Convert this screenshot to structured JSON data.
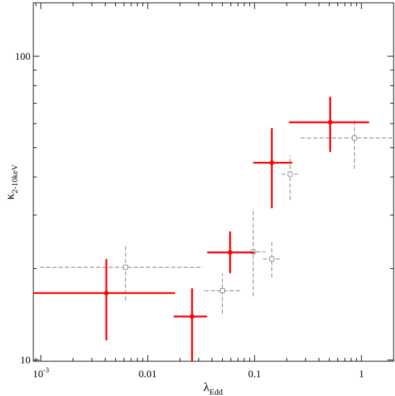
{
  "chart_data": {
    "type": "scatter",
    "title": "",
    "xlabel": "λ",
    "xlabel_sub": "Edd",
    "ylabel": "κ",
    "ylabel_sub": "2-10keV",
    "xscale": "log",
    "yscale": "log",
    "xlim": [
      0.00085,
      2.0
    ],
    "ylim": [
      9.9,
      150
    ],
    "grid": false,
    "legend": "none",
    "x_ticks": [
      {
        "value": 0.001,
        "base": "10",
        "exp": "-3"
      },
      {
        "value": 0.01,
        "label": "0.01"
      },
      {
        "value": 0.1,
        "label": "0.1"
      },
      {
        "value": 1,
        "label": "1"
      }
    ],
    "y_ticks": [
      {
        "value": 10,
        "label": "10"
      },
      {
        "value": 100,
        "label": "100"
      }
    ],
    "series": [
      {
        "color": "#ff0000",
        "marker": "filled-circle",
        "points": [
          {
            "x": 0.0041,
            "xlo": 0.00086,
            "xhi": 0.018,
            "y": 16.6,
            "ylo": 11.6,
            "yhi": 21.5
          },
          {
            "x": 0.026,
            "xlo": 0.0175,
            "xhi": 0.036,
            "y": 13.9,
            "ylo": 9.9,
            "yhi": 17.2
          },
          {
            "x": 0.059,
            "xlo": 0.036,
            "xhi": 0.1,
            "y": 22.6,
            "ylo": 19.3,
            "yhi": 26.5
          },
          {
            "x": 0.145,
            "xlo": 0.097,
            "xhi": 0.225,
            "y": 44.6,
            "ylo": 31.6,
            "yhi": 58.0
          },
          {
            "x": 0.51,
            "xlo": 0.21,
            "xhi": 1.18,
            "y": 60.6,
            "ylo": 48.4,
            "yhi": 73.5
          }
        ]
      },
      {
        "color": "#8c8c8c",
        "marker": "open-square",
        "line_style": "dashed",
        "points": [
          {
            "x": 0.0062,
            "xlo": 0.00098,
            "xhi": 0.033,
            "y": 20.2,
            "ylo": 15.7,
            "yhi": 23.7
          },
          {
            "x": 0.05,
            "xlo": 0.034,
            "xhi": 0.076,
            "y": 16.9,
            "ylo": 14.2,
            "yhi": 19.3
          },
          {
            "x": 0.097,
            "xlo": 0.09,
            "xhi": 0.126,
            "y": 22.7,
            "ylo": 16.2,
            "yhi": 31.3
          },
          {
            "x": 0.145,
            "xlo": 0.12,
            "xhi": 0.177,
            "y": 21.5,
            "ylo": 18.7,
            "yhi": 24.5
          },
          {
            "x": 0.215,
            "xlo": 0.178,
            "xhi": 0.26,
            "y": 40.9,
            "ylo": 33.6,
            "yhi": 47.2
          },
          {
            "x": 0.86,
            "xlo": 0.27,
            "xhi": 2.0,
            "y": 53.8,
            "ylo": 42.6,
            "yhi": 62.4
          }
        ]
      }
    ]
  }
}
